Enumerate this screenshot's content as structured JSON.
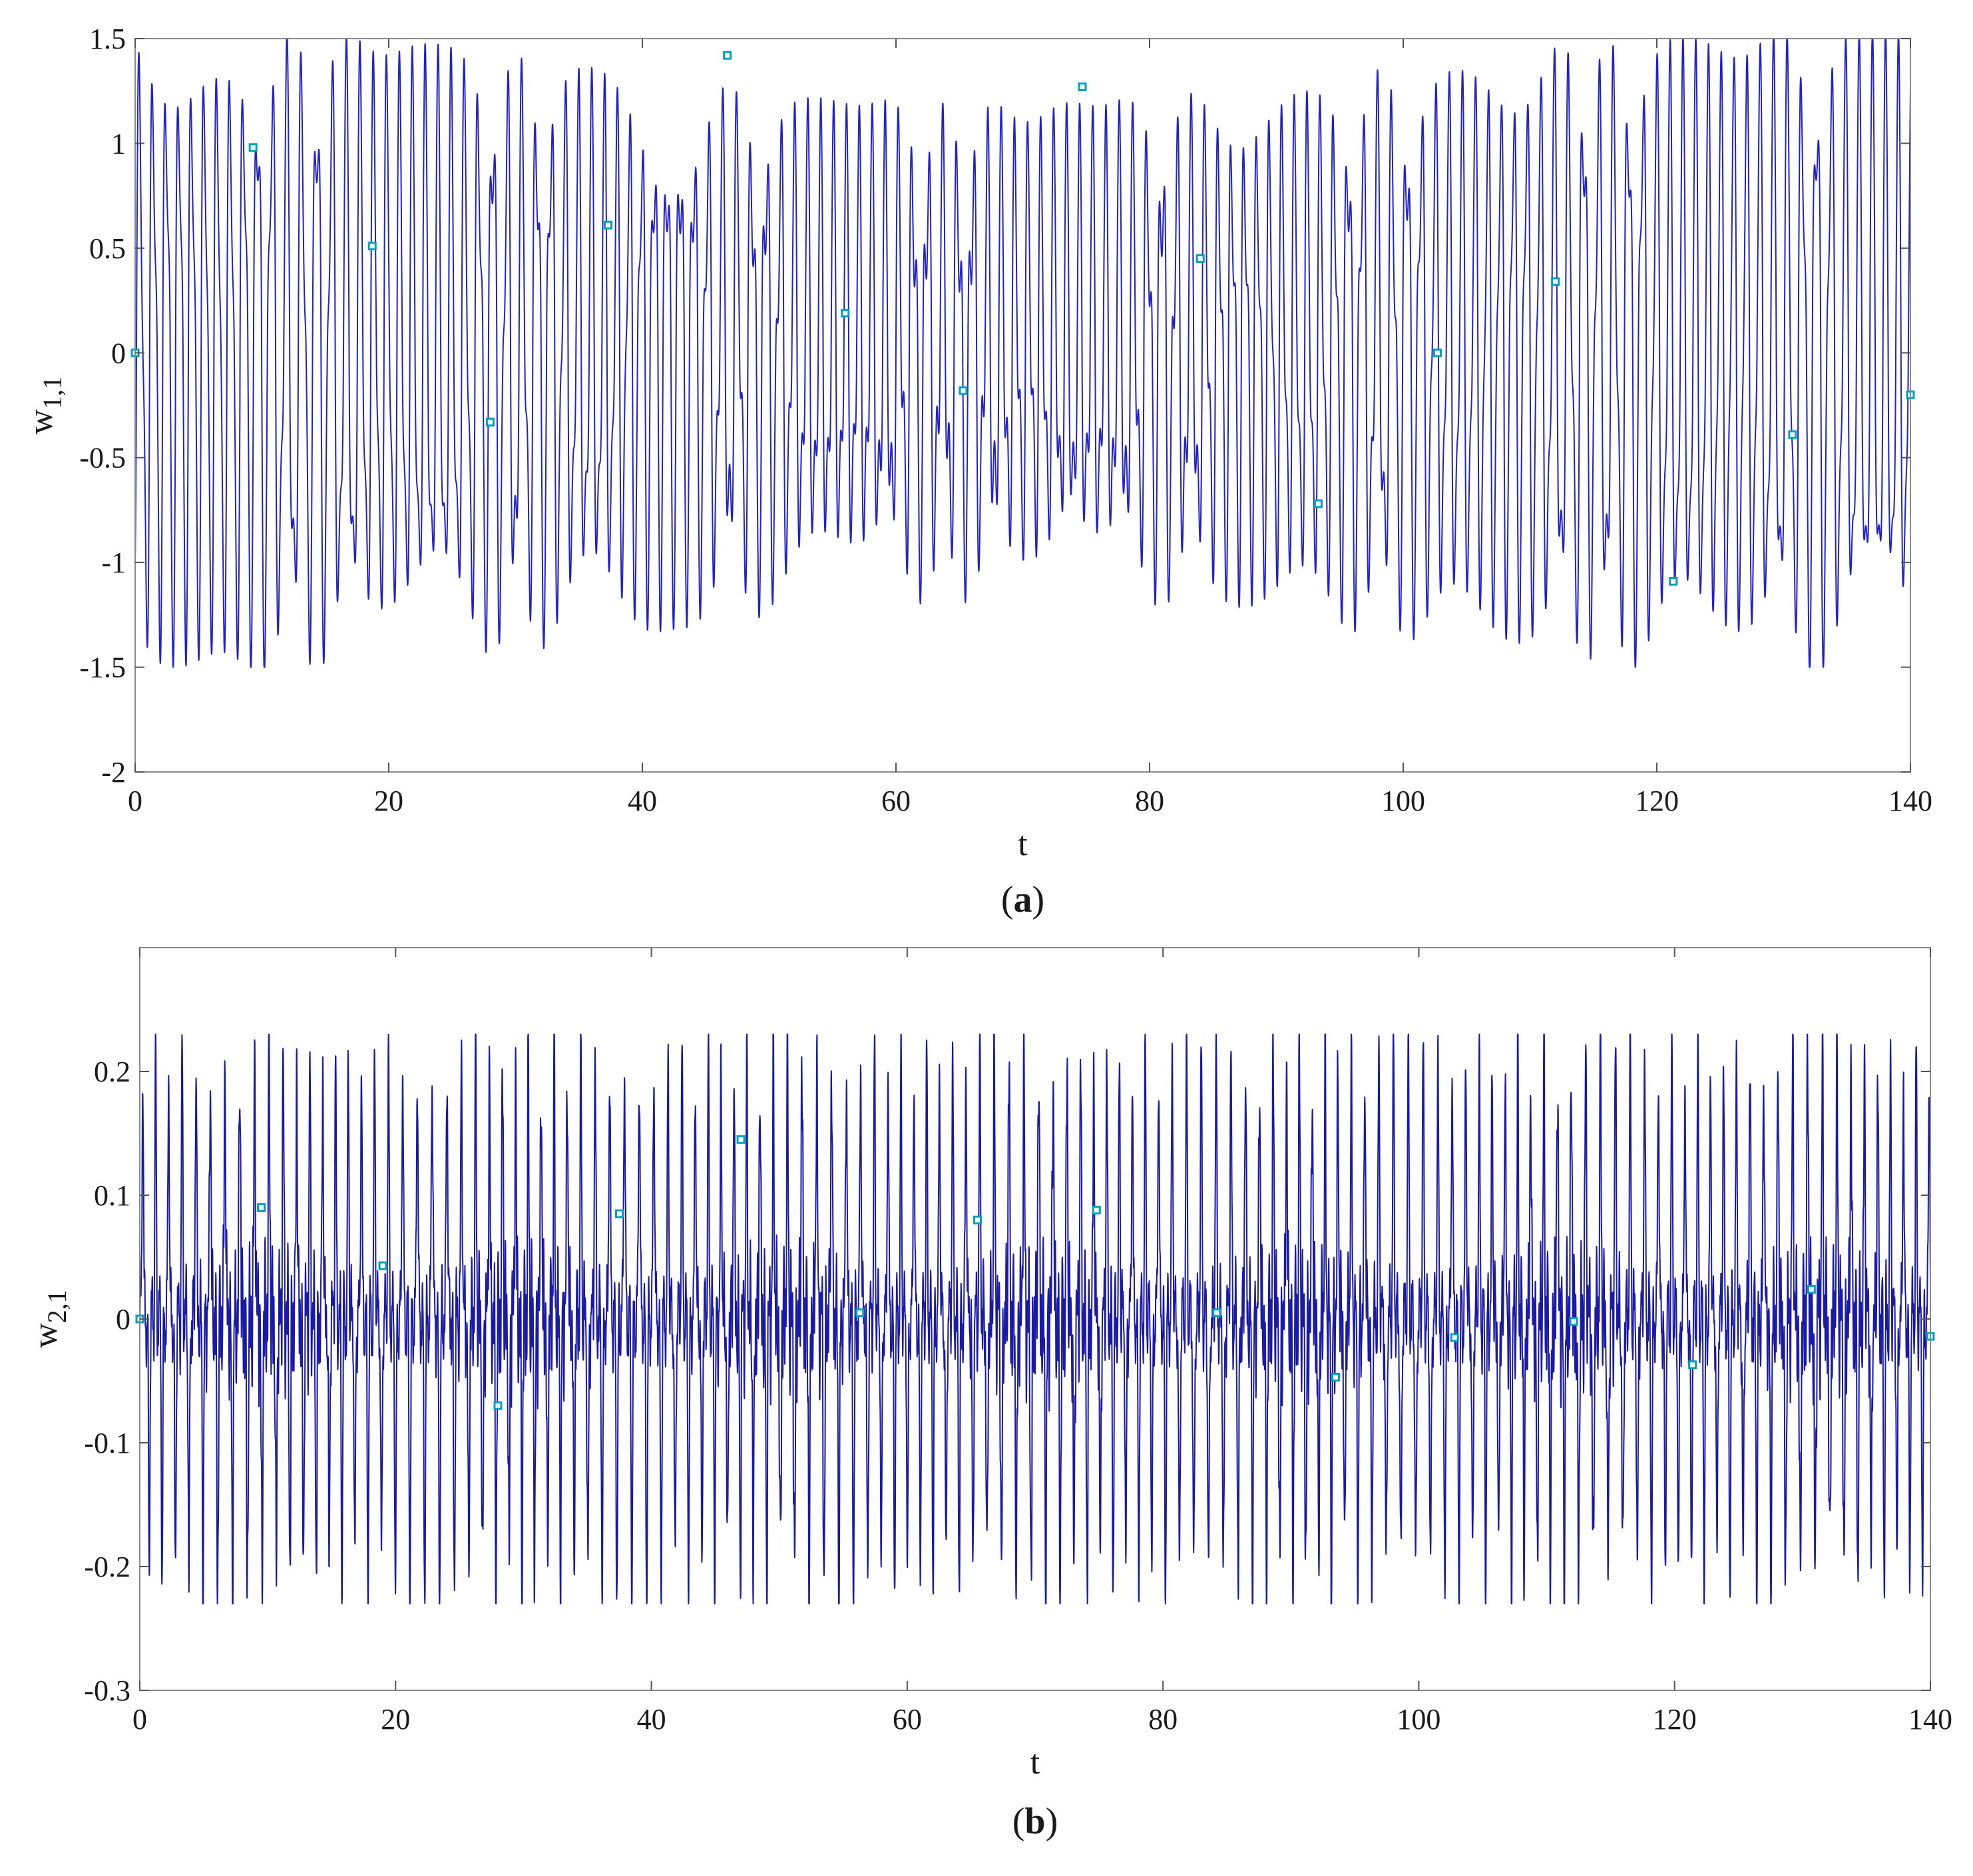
{
  "chart_data": [
    {
      "panel_label": "a",
      "type": "line",
      "xlabel": "t",
      "ylabel": "w",
      "ylabel_subscript": "1,1",
      "xlim": [
        0,
        140
      ],
      "ylim": [
        -2,
        1.5
      ],
      "xticks": [
        0,
        20,
        40,
        60,
        80,
        100,
        120,
        140
      ],
      "yticks": [
        -2,
        -1.5,
        -1,
        -0.5,
        0,
        0.5,
        1,
        1.5
      ],
      "line_color": "#2222cc",
      "marker_color": "#00a0c0",
      "grid": false,
      "waveform": {
        "envelope_max": 1.5,
        "envelope_min": -1.5,
        "spikes_per_unit_t": 0.93,
        "description_of_shape": "large-amplitude chaotic oscillation with sharp peaks near ±1.3–1.5 and smaller intermediate bumps"
      },
      "markers": [
        {
          "t": 0,
          "w": 0
        },
        {
          "t": 9.3,
          "w": 0.98
        },
        {
          "t": 18.7,
          "w": 0.51
        },
        {
          "t": 28,
          "w": -0.33
        },
        {
          "t": 37.3,
          "w": 0.61
        },
        {
          "t": 46.7,
          "w": 1.42
        },
        {
          "t": 56,
          "w": 0.19
        },
        {
          "t": 65.3,
          "w": -0.18
        },
        {
          "t": 74.7,
          "w": 1.27
        },
        {
          "t": 84,
          "w": 0.45
        },
        {
          "t": 93.3,
          "w": -0.72
        },
        {
          "t": 102.7,
          "w": 0.0
        },
        {
          "t": 112,
          "w": 0.34
        },
        {
          "t": 121.3,
          "w": -1.09
        },
        {
          "t": 130.7,
          "w": -0.39
        },
        {
          "t": 140,
          "w": -0.2
        }
      ]
    },
    {
      "panel_label": "b",
      "type": "line",
      "xlabel": "t",
      "ylabel": "w",
      "ylabel_subscript": "2,1",
      "xlim": [
        0,
        140
      ],
      "ylim": [
        -0.3,
        0.3
      ],
      "xticks": [
        0,
        20,
        40,
        60,
        80,
        100,
        120,
        140
      ],
      "yticks": [
        -0.3,
        -0.2,
        -0.1,
        0,
        0.1,
        0.2
      ],
      "line_color": "#1a1aaa",
      "marker_color": "#00a0c0",
      "grid": false,
      "waveform": {
        "envelope_max": 0.23,
        "envelope_min": -0.23,
        "spikes_per_unit_t": 0.93,
        "description_of_shape": "dense high-frequency chaotic oscillation with sharp spikes reaching about ±0.2"
      },
      "markers": [
        {
          "t": 0,
          "w": 0
        },
        {
          "t": 9.5,
          "w": 0.09
        },
        {
          "t": 19,
          "w": 0.043
        },
        {
          "t": 28,
          "w": -0.07
        },
        {
          "t": 37.5,
          "w": 0.085
        },
        {
          "t": 47,
          "w": 0.145
        },
        {
          "t": 56.3,
          "w": 0.005
        },
        {
          "t": 65.5,
          "w": 0.08
        },
        {
          "t": 74.8,
          "w": 0.088
        },
        {
          "t": 84.2,
          "w": 0.005
        },
        {
          "t": 93.5,
          "w": -0.047
        },
        {
          "t": 102.8,
          "w": -0.015
        },
        {
          "t": 112.1,
          "w": -0.002
        },
        {
          "t": 121.4,
          "w": -0.037
        },
        {
          "t": 130.7,
          "w": 0.024
        },
        {
          "t": 140,
          "w": -0.014
        }
      ]
    }
  ]
}
